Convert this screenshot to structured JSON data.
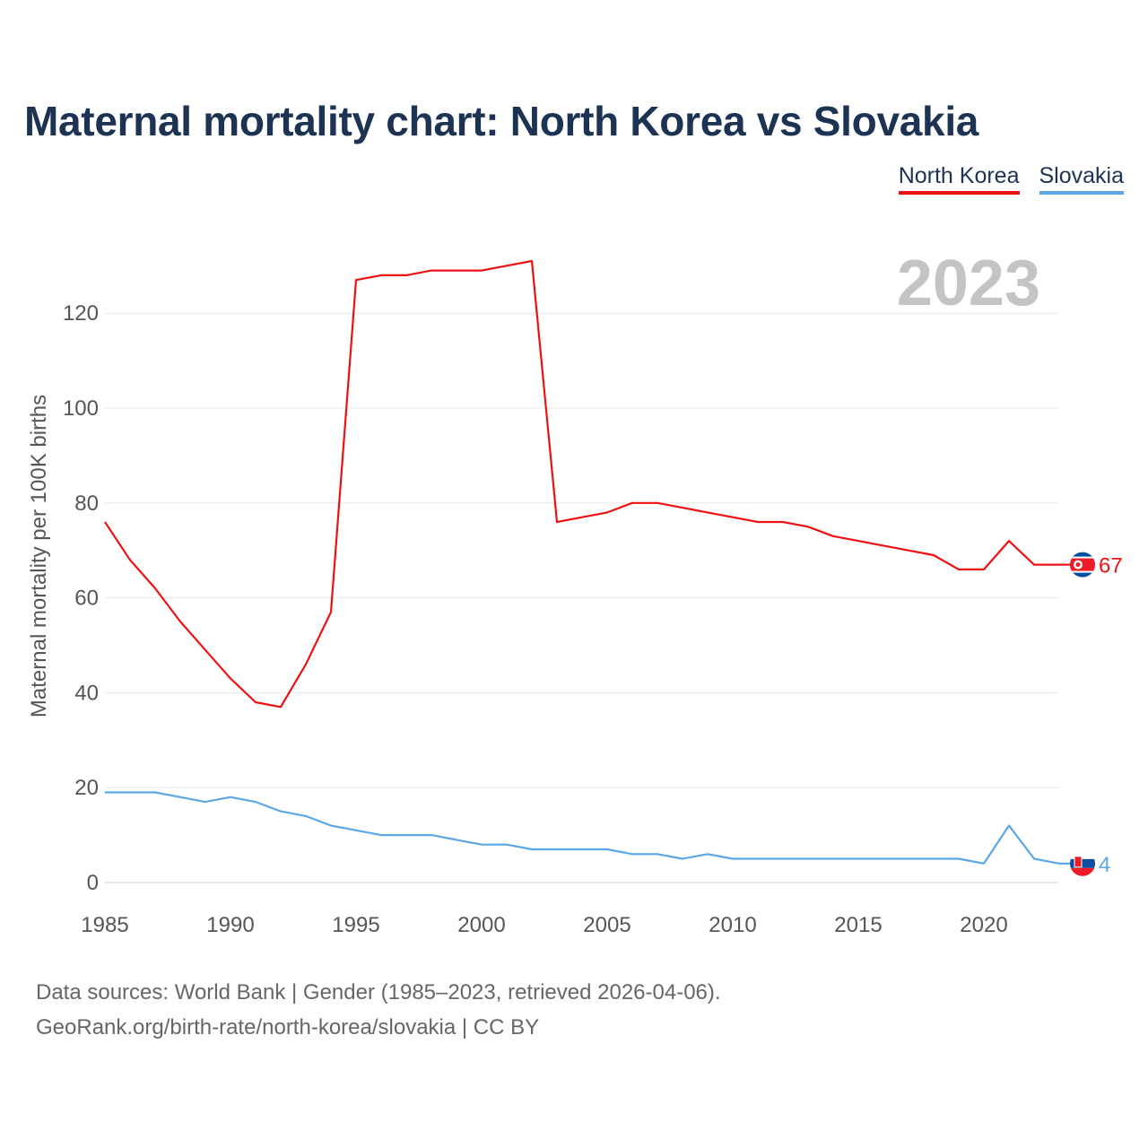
{
  "title": "Maternal mortality chart: North Korea vs Slovakia",
  "legend": [
    {
      "label": "North Korea",
      "color": "#ee1111"
    },
    {
      "label": "Slovakia",
      "color": "#5aa6e8"
    }
  ],
  "year_label": "2023",
  "footer": {
    "line1": "Data sources: World Bank | Gender (1985–2023, retrieved 2026-04-06).",
    "line2": "GeoRank.org/birth-rate/north-korea/slovakia | CC BY"
  },
  "chart_data": {
    "type": "line",
    "title": "Maternal mortality chart: North Korea vs Slovakia",
    "xlabel": "",
    "ylabel": "Maternal mortality per 100K births",
    "xlim": [
      1985,
      2023
    ],
    "ylim": [
      0,
      130
    ],
    "x_ticks": [
      1985,
      1990,
      1995,
      2000,
      2005,
      2010,
      2015,
      2020
    ],
    "y_ticks": [
      0,
      20,
      40,
      60,
      80,
      100,
      120
    ],
    "grid": true,
    "legend_position": "top-right",
    "x": [
      1985,
      1986,
      1987,
      1988,
      1989,
      1990,
      1991,
      1992,
      1993,
      1994,
      1995,
      1996,
      1997,
      1998,
      1999,
      2000,
      2001,
      2002,
      2003,
      2004,
      2005,
      2006,
      2007,
      2008,
      2009,
      2010,
      2011,
      2012,
      2013,
      2014,
      2015,
      2016,
      2017,
      2018,
      2019,
      2020,
      2021,
      2022,
      2023
    ],
    "series": [
      {
        "name": "North Korea",
        "color": "#ee1111",
        "end_label": "67",
        "flag": "north-korea-flag-icon",
        "values": [
          76,
          68,
          62,
          55,
          49,
          43,
          38,
          37,
          46,
          57,
          127,
          128,
          128,
          129,
          129,
          129,
          130,
          131,
          76,
          77,
          78,
          80,
          80,
          79,
          78,
          77,
          76,
          76,
          75,
          73,
          72,
          71,
          70,
          69,
          66,
          66,
          72,
          67,
          67
        ]
      },
      {
        "name": "Slovakia",
        "color": "#5aa6e8",
        "end_label": "4",
        "flag": "slovakia-flag-icon",
        "values": [
          19,
          19,
          19,
          18,
          17,
          18,
          17,
          15,
          14,
          12,
          11,
          10,
          10,
          10,
          9,
          8,
          8,
          7,
          7,
          7,
          7,
          6,
          6,
          5,
          6,
          5,
          5,
          5,
          5,
          5,
          5,
          5,
          5,
          5,
          5,
          4,
          12,
          5,
          4
        ]
      }
    ]
  }
}
